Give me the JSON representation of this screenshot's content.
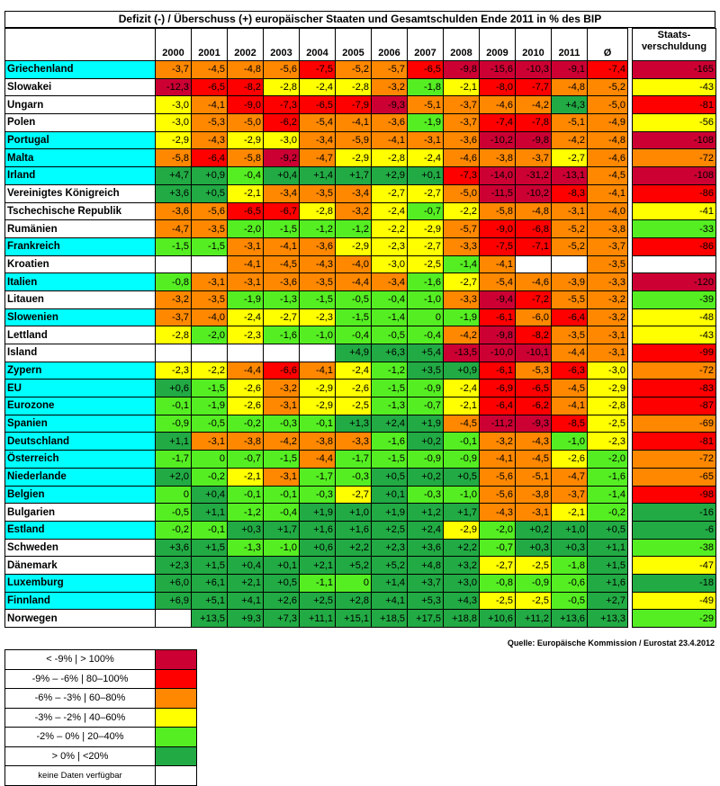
{
  "title": "Defizit (-) / Überschuss (+) europäischer Staaten und Gesamtschulden Ende 2011 in % des BIP",
  "years": [
    "2000",
    "2001",
    "2002",
    "2003",
    "2004",
    "2005",
    "2006",
    "2007",
    "2008",
    "2009",
    "2010",
    "2011",
    "Ø"
  ],
  "debt_header": "Staats-\nverschuldung",
  "colors": {
    "darkred": "#cc0033",
    "red": "#ff0000",
    "orange": "#ff8800",
    "yellow": "#ffff00",
    "lightgreen": "#55ee22",
    "green": "#22aa44",
    "white": "#ffffff",
    "cyan": "#00ffff"
  },
  "rows": [
    {
      "name": "Griechenland",
      "cyan": true,
      "cells": [
        "-3,7",
        "-4,5",
        "-4,8",
        "-5,6",
        "-7,5",
        "-5,2",
        "-5,7",
        "-6,5",
        "-9,8",
        "-15,6",
        "-10,3",
        "-9,1",
        "-7,4"
      ],
      "debt": "-165"
    },
    {
      "name": "Slowakei",
      "cyan": false,
      "cells": [
        "-12,3",
        "-6,5",
        "-8,2",
        "-2,8",
        "-2,4",
        "-2,8",
        "-3,2",
        "-1,8",
        "-2,1",
        "-8,0",
        "-7,7",
        "-4,8",
        "-5,2"
      ],
      "debt": "-43"
    },
    {
      "name": "Ungarn",
      "cyan": false,
      "cells": [
        "-3,0",
        "-4,1",
        "-9,0",
        "-7,3",
        "-6,5",
        "-7,9",
        "-9,3",
        "-5,1",
        "-3,7",
        "-4,6",
        "-4,2",
        "+4,3",
        "-5,0"
      ],
      "debt": "-81"
    },
    {
      "name": "Polen",
      "cyan": false,
      "cells": [
        "-3,0",
        "-5,3",
        "-5,0",
        "-6,2",
        "-5,4",
        "-4,1",
        "-3,6",
        "-1,9",
        "-3,7",
        "-7,4",
        "-7,8",
        "-5,1",
        "-4,9"
      ],
      "debt": "-56"
    },
    {
      "name": "Portugal",
      "cyan": true,
      "cells": [
        "-2,9",
        "-4,3",
        "-2,9",
        "-3,0",
        "-3,4",
        "-5,9",
        "-4,1",
        "-3,1",
        "-3,6",
        "-10,2",
        "-9,8",
        "-4,2",
        "-4,8"
      ],
      "debt": "-108"
    },
    {
      "name": "Malta",
      "cyan": true,
      "cells": [
        "-5,8",
        "-6,4",
        "-5,8",
        "-9,2",
        "-4,7",
        "-2,9",
        "-2,8",
        "-2,4",
        "-4,6",
        "-3,8",
        "-3,7",
        "-2,7",
        "-4,6"
      ],
      "debt": "-72"
    },
    {
      "name": "Irland",
      "cyan": true,
      "cells": [
        "+4,7",
        "+0,9",
        "-0,4",
        "+0,4",
        "+1,4",
        "+1,7",
        "+2,9",
        "+0,1",
        "-7,3",
        "-14,0",
        "-31,2",
        "-13,1",
        "-4,5"
      ],
      "debt": "-108"
    },
    {
      "name": "Vereinigtes Königreich",
      "cyan": false,
      "cells": [
        "+3,6",
        "+0,5",
        "-2,1",
        "-3,4",
        "-3,5",
        "-3,4",
        "-2,7",
        "-2,7",
        "-5,0",
        "-11,5",
        "-10,2",
        "-8,3",
        "-4,1"
      ],
      "debt": "-86"
    },
    {
      "name": "Tschechische Republik",
      "cyan": false,
      "cells": [
        "-3,6",
        "-5,6",
        "-6,5",
        "-6,7",
        "-2,8",
        "-3,2",
        "-2,4",
        "-0,7",
        "-2,2",
        "-5,8",
        "-4,8",
        "-3,1",
        "-4,0"
      ],
      "debt": "-41"
    },
    {
      "name": "Rumänien",
      "cyan": false,
      "cells": [
        "-4,7",
        "-3,5",
        "-2,0",
        "-1,5",
        "-1,2",
        "-1,2",
        "-2,2",
        "-2,9",
        "-5,7",
        "-9,0",
        "-6,8",
        "-5,2",
        "-3,8"
      ],
      "debt": "-33"
    },
    {
      "name": "Frankreich",
      "cyan": true,
      "cells": [
        "-1,5",
        "-1,5",
        "-3,1",
        "-4,1",
        "-3,6",
        "-2,9",
        "-2,3",
        "-2,7",
        "-3,3",
        "-7,5",
        "-7,1",
        "-5,2",
        "-3,7"
      ],
      "debt": "-86"
    },
    {
      "name": "Kroatien",
      "cyan": false,
      "cells": [
        "",
        "",
        "-4,1",
        "-4,5",
        "-4,3",
        "-4,0",
        "-3,0",
        "-2,5",
        "-1,4",
        "-4,1",
        "",
        "",
        "-3,5"
      ],
      "debt": ""
    },
    {
      "name": "Italien",
      "cyan": true,
      "cells": [
        "-0,8",
        "-3,1",
        "-3,1",
        "-3,6",
        "-3,5",
        "-4,4",
        "-3,4",
        "-1,6",
        "-2,7",
        "-5,4",
        "-4,6",
        "-3,9",
        "-3,3"
      ],
      "debt": "-120"
    },
    {
      "name": "Litauen",
      "cyan": false,
      "cells": [
        "-3,2",
        "-3,5",
        "-1,9",
        "-1,3",
        "-1,5",
        "-0,5",
        "-0,4",
        "-1,0",
        "-3,3",
        "-9,4",
        "-7,2",
        "-5,5",
        "-3,2"
      ],
      "debt": "-39"
    },
    {
      "name": "Slowenien",
      "cyan": true,
      "cells": [
        "-3,7",
        "-4,0",
        "-2,4",
        "-2,7",
        "-2,3",
        "-1,5",
        "-1,4",
        "0",
        "-1,9",
        "-6,1",
        "-6,0",
        "-6,4",
        "-3,2"
      ],
      "debt": "-48"
    },
    {
      "name": "Lettland",
      "cyan": false,
      "cells": [
        "-2,8",
        "-2,0",
        "-2,3",
        "-1,6",
        "-1,0",
        "-0,4",
        "-0,5",
        "-0,4",
        "-4,2",
        "-9,8",
        "-8,2",
        "-3,5",
        "-3,1"
      ],
      "debt": "-43"
    },
    {
      "name": "Island",
      "cyan": false,
      "cells": [
        "",
        "",
        "",
        "",
        "",
        "+4,9",
        "+6,3",
        "+5,4",
        "-13,5",
        "-10,0",
        "-10,1",
        "-4,4",
        "-3,1"
      ],
      "debt": "-99"
    },
    {
      "name": "Zypern",
      "cyan": true,
      "cells": [
        "-2,3",
        "-2,2",
        "-4,4",
        "-6,6",
        "-4,1",
        "-2,4",
        "-1,2",
        "+3,5",
        "+0,9",
        "-6,1",
        "-5,3",
        "-6,3",
        "-3,0"
      ],
      "debt": "-72"
    },
    {
      "name": "EU",
      "cyan": true,
      "cells": [
        "+0,6",
        "-1,5",
        "-2,6",
        "-3,2",
        "-2,9",
        "-2,6",
        "-1,5",
        "-0,9",
        "-2,4",
        "-6,9",
        "-6,5",
        "-4,5",
        "-2,9"
      ],
      "debt": "-83"
    },
    {
      "name": "Eurozone",
      "cyan": true,
      "cells": [
        "-0,1",
        "-1,9",
        "-2,6",
        "-3,1",
        "-2,9",
        "-2,5",
        "-1,3",
        "-0,7",
        "-2,1",
        "-6,4",
        "-6,2",
        "-4,1",
        "-2,8"
      ],
      "debt": "-87"
    },
    {
      "name": "Spanien",
      "cyan": true,
      "cells": [
        "-0,9",
        "-0,5",
        "-0,2",
        "-0,3",
        "-0,1",
        "+1,3",
        "+2,4",
        "+1,9",
        "-4,5",
        "-11,2",
        "-9,3",
        "-8,5",
        "-2,5"
      ],
      "debt": "-69"
    },
    {
      "name": "Deutschland",
      "cyan": true,
      "cells": [
        "+1,1",
        "-3,1",
        "-3,8",
        "-4,2",
        "-3,8",
        "-3,3",
        "-1,6",
        "+0,2",
        "-0,1",
        "-3,2",
        "-4,3",
        "-1,0",
        "-2,3"
      ],
      "debt": "-81"
    },
    {
      "name": "Österreich",
      "cyan": true,
      "cells": [
        "-1,7",
        "0",
        "-0,7",
        "-1,5",
        "-4,4",
        "-1,7",
        "-1,5",
        "-0,9",
        "-0,9",
        "-4,1",
        "-4,5",
        "-2,6",
        "-2,0"
      ],
      "debt": "-72"
    },
    {
      "name": "Niederlande",
      "cyan": true,
      "cells": [
        "+2,0",
        "-0,2",
        "-2,1",
        "-3,1",
        "-1,7",
        "-0,3",
        "+0,5",
        "+0,2",
        "+0,5",
        "-5,6",
        "-5,1",
        "-4,7",
        "-1,6"
      ],
      "debt": "-65"
    },
    {
      "name": "Belgien",
      "cyan": true,
      "cells": [
        "0",
        "+0,4",
        "-0,1",
        "-0,1",
        "-0,3",
        "-2,7",
        "+0,1",
        "-0,3",
        "-1,0",
        "-5,6",
        "-3,8",
        "-3,7",
        "-1,4"
      ],
      "debt": "-98"
    },
    {
      "name": "Bulgarien",
      "cyan": false,
      "cells": [
        "-0,5",
        "+1,1",
        "-1,2",
        "-0,4",
        "+1,9",
        "+1,0",
        "+1,9",
        "+1,2",
        "+1,7",
        "-4,3",
        "-3,1",
        "-2,1",
        "-0,2"
      ],
      "debt": "-16"
    },
    {
      "name": "Estland",
      "cyan": true,
      "cells": [
        "-0,2",
        "-0,1",
        "+0,3",
        "+1,7",
        "+1,6",
        "+1,6",
        "+2,5",
        "+2,4",
        "-2,9",
        "-2,0",
        "+0,2",
        "+1,0",
        "+0,5"
      ],
      "debt": "-6"
    },
    {
      "name": "Schweden",
      "cyan": false,
      "cells": [
        "+3,6",
        "+1,5",
        "-1,3",
        "-1,0",
        "+0,6",
        "+2,2",
        "+2,3",
        "+3,6",
        "+2,2",
        "-0,7",
        "+0,3",
        "+0,3",
        "+1,1"
      ],
      "debt": "-38"
    },
    {
      "name": "Dänemark",
      "cyan": false,
      "cells": [
        "+2,3",
        "+1,5",
        "+0,4",
        "+0,1",
        "+2,1",
        "+5,2",
        "+5,2",
        "+4,8",
        "+3,2",
        "-2,7",
        "-2,5",
        "-1,8",
        "+1,5"
      ],
      "debt": "-47"
    },
    {
      "name": "Luxemburg",
      "cyan": true,
      "cells": [
        "+6,0",
        "+6,1",
        "+2,1",
        "+0,5",
        "-1,1",
        "0",
        "+1,4",
        "+3,7",
        "+3,0",
        "-0,8",
        "-0,9",
        "-0,6",
        "+1,6"
      ],
      "debt": "-18"
    },
    {
      "name": "Finnland",
      "cyan": true,
      "cells": [
        "+6,9",
        "+5,1",
        "+4,1",
        "+2,6",
        "+2,5",
        "+2,8",
        "+4,1",
        "+5,3",
        "+4,3",
        "-2,5",
        "-2,5",
        "-0,5",
        "+2,7"
      ],
      "debt": "-49"
    },
    {
      "name": "Norwegen",
      "cyan": false,
      "cells": [
        "",
        "+13,5",
        "+9,3",
        "+7,3",
        "+11,1",
        "+15,1",
        "+18,5",
        "+17,5",
        "+18,8",
        "+10,6",
        "+11,2",
        "+13,6",
        "+13,3"
      ],
      "debt": "-29"
    }
  ],
  "source": "Quelle: Europäische Kommission / Eurostat 23.4.2012",
  "legend": [
    {
      "label": "< -9%  |   > 100%",
      "color": "darkred"
    },
    {
      "label": "-9% – -6% | 80–100%",
      "color": "red"
    },
    {
      "label": "-6% – -3% | 60–80%",
      "color": "orange"
    },
    {
      "label": "-3% – -2% | 40–60%",
      "color": "yellow"
    },
    {
      "label": "-2% – 0% | 20–40%",
      "color": "lightgreen"
    },
    {
      "label": "> 0%  |  <20%",
      "color": "green"
    },
    {
      "label": "keine Daten verfügbar",
      "color": "white"
    }
  ]
}
